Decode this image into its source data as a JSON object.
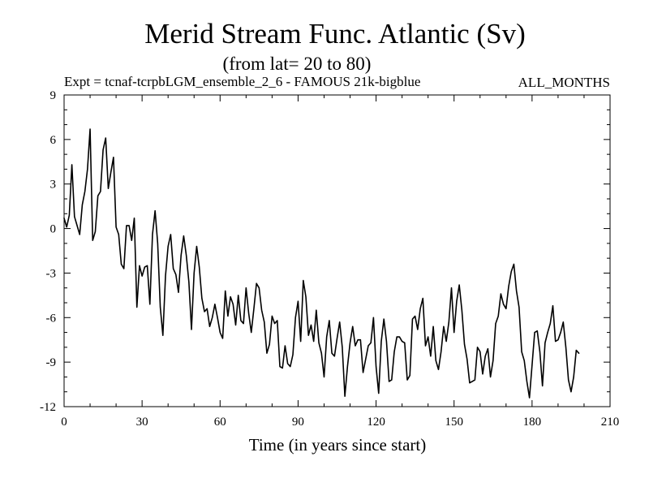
{
  "chart_data": {
    "type": "line",
    "title": "Merid Stream Func. Atlantic (Sv)",
    "subtitle": "(from lat= 20 to 80)",
    "experiment_label": "Expt = tcnaf-tcrpbLGM_ensemble_2_6 - FAMOUS 21k-bigblue",
    "months_label": "ALL_MONTHS",
    "xlabel": "Time (in years since start)",
    "ylabel": "",
    "xlim": [
      0,
      210
    ],
    "ylim": [
      -12,
      9
    ],
    "xticks": [
      0,
      30,
      60,
      90,
      120,
      150,
      180,
      210
    ],
    "yticks": [
      -12,
      -9,
      -6,
      -3,
      0,
      3,
      6,
      9
    ],
    "x_tick_labels": [
      "0",
      "30",
      "60",
      "90",
      "120",
      "150",
      "180",
      "210"
    ],
    "y_tick_labels": [
      "-12",
      "-9",
      "-6",
      "-3",
      "0",
      "3",
      "6",
      "9"
    ],
    "line_color": "#000000",
    "series": [
      {
        "name": "Merid Stream Func. Atlantic",
        "x_start": 0,
        "x_step": 1,
        "values": [
          0.7,
          0.1,
          0.9,
          4.3,
          0.8,
          0.2,
          -0.4,
          1.6,
          2.5,
          4.0,
          6.7,
          -0.8,
          -0.2,
          2.2,
          2.5,
          5.3,
          6.1,
          2.7,
          3.8,
          4.8,
          0.1,
          -0.4,
          -2.4,
          -2.7,
          0.2,
          0.2,
          -0.8,
          0.7,
          -5.3,
          -2.5,
          -3.2,
          -2.6,
          -2.5,
          -5.1,
          -0.4,
          1.2,
          -1.0,
          -5.3,
          -7.2,
          -3.2,
          -1.2,
          -0.4,
          -2.7,
          -3.1,
          -4.3,
          -1.8,
          -0.5,
          -1.8,
          -3.6,
          -6.8,
          -3.0,
          -1.2,
          -2.6,
          -4.7,
          -5.6,
          -5.4,
          -6.6,
          -6.0,
          -5.1,
          -6.0,
          -7.0,
          -7.4,
          -4.2,
          -5.9,
          -4.6,
          -5.1,
          -6.5,
          -4.5,
          -6.2,
          -6.4,
          -4.0,
          -5.7,
          -7.0,
          -5.4,
          -3.7,
          -4.0,
          -5.5,
          -6.3,
          -8.4,
          -7.8,
          -5.9,
          -6.4,
          -6.2,
          -9.3,
          -9.4,
          -7.9,
          -9.1,
          -9.3,
          -8.5,
          -6.0,
          -4.9,
          -7.6,
          -3.5,
          -4.6,
          -7.2,
          -6.5,
          -7.6,
          -5.5,
          -7.7,
          -8.4,
          -10.0,
          -7.3,
          -6.2,
          -8.4,
          -8.6,
          -7.4,
          -6.3,
          -8.0,
          -11.3,
          -9.3,
          -7.7,
          -6.6,
          -7.9,
          -7.5,
          -7.5,
          -9.7,
          -8.8,
          -7.9,
          -7.7,
          -6.0,
          -9.3,
          -11.1,
          -7.6,
          -6.1,
          -7.6,
          -10.3,
          -10.2,
          -8.3,
          -7.3,
          -7.3,
          -7.6,
          -7.7,
          -10.2,
          -9.9,
          -6.1,
          -5.9,
          -6.8,
          -5.4,
          -4.7,
          -7.9,
          -7.3,
          -8.6,
          -6.6,
          -8.9,
          -9.5,
          -8.3,
          -6.6,
          -7.6,
          -6.3,
          -4.0,
          -7.0,
          -4.9,
          -3.8,
          -5.5,
          -7.8,
          -8.8,
          -10.4,
          -10.3,
          -10.2,
          -8.0,
          -8.3,
          -9.8,
          -8.6,
          -8.1,
          -10.0,
          -8.9,
          -6.4,
          -5.9,
          -4.4,
          -5.1,
          -5.4,
          -3.9,
          -2.9,
          -2.4,
          -4.2,
          -5.3,
          -8.3,
          -8.9,
          -10.3,
          -11.4,
          -9.2,
          -7.0,
          -6.9,
          -8.3,
          -10.6,
          -7.7,
          -7.0,
          -6.4,
          -5.2,
          -7.6,
          -7.5,
          -7.0,
          -6.3,
          -8.0,
          -10.2,
          -11.0,
          -10.0,
          -8.2,
          -8.4
        ]
      }
    ]
  }
}
